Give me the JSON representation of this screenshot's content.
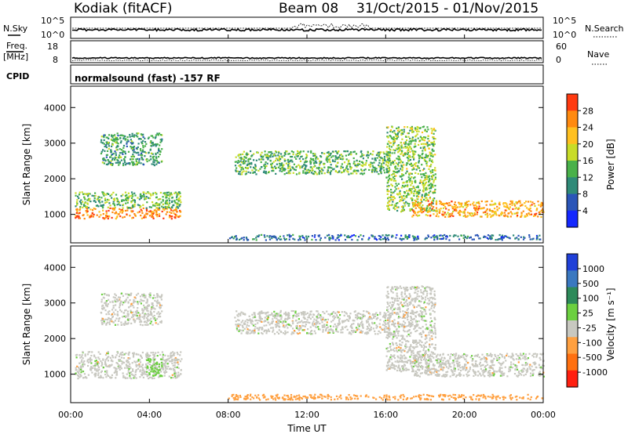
{
  "header": {
    "station": "Kodiak (fitACF)",
    "beam": "Beam 08",
    "date_range": "31/Oct/2015 - 01/Nov/2015"
  },
  "strip_noise": {
    "left_label": "N.Sky",
    "right_label": "N.Search",
    "left_ticks": [
      "10^5",
      "10^0"
    ],
    "right_ticks": [
      "10^5",
      "10^0"
    ]
  },
  "strip_freq": {
    "left_label_1": "Freq.",
    "left_label_2": "[MHz]",
    "right_label": "Nave",
    "left_ticks": [
      "18",
      "8"
    ],
    "right_ticks": [
      "60",
      "0"
    ]
  },
  "strip_cpid": {
    "label": "CPID",
    "text": "normalsound (fast) -157 RF"
  },
  "x_axis": {
    "label": "Time UT",
    "ticks": [
      "00:00",
      "04:00",
      "08:00",
      "12:00",
      "16:00",
      "20:00",
      "00:00"
    ]
  },
  "chart_data": [
    {
      "type": "heatmap",
      "name": "power",
      "ylabel": "Slant Range [km]",
      "yticks": [
        "1000",
        "2000",
        "3000",
        "4000"
      ],
      "ylim": [
        200,
        4600
      ],
      "xlim_hours": [
        0,
        24
      ],
      "colorbar_label": "Power [dB]",
      "colorbar_ticks": [
        "4",
        "8",
        "12",
        "16",
        "20",
        "24",
        "28"
      ],
      "colorbar_colors": [
        "#1428ff",
        "#2a55b8",
        "#2f8a78",
        "#49b14a",
        "#c8dc28",
        "#ffc020",
        "#ff8a10",
        "#ff3a10"
      ],
      "bands": [
        {
          "t": [
            0.2,
            5.6
          ],
          "range": [
            900,
            1200
          ],
          "level": 24
        },
        {
          "t": [
            0.2,
            5.6
          ],
          "range": [
            1200,
            1650
          ],
          "level": 12
        },
        {
          "t": [
            1.5,
            4.6
          ],
          "range": [
            2400,
            3300
          ],
          "level": 10
        },
        {
          "t": [
            8.3,
            16.2
          ],
          "range": [
            2150,
            2800
          ],
          "level": 12
        },
        {
          "t": [
            16.0,
            18.5
          ],
          "range": [
            1100,
            3500
          ],
          "level": 14
        },
        {
          "t": [
            17.3,
            24.0
          ],
          "range": [
            950,
            1400
          ],
          "level": 22
        },
        {
          "t": [
            8.0,
            24.0
          ],
          "range": [
            300,
            450
          ],
          "level": 6
        }
      ]
    },
    {
      "type": "heatmap",
      "name": "velocity",
      "ylabel": "Slant Range [km]",
      "yticks": [
        "1000",
        "2000",
        "3000",
        "4000"
      ],
      "ylim": [
        200,
        4600
      ],
      "xlim_hours": [
        0,
        24
      ],
      "colorbar_label": "Velocity [m s⁻¹]",
      "colorbar_ticks": [
        "1000",
        "500",
        "100",
        "25",
        "-25",
        "-100",
        "-500",
        "-1000"
      ],
      "colorbar_colors": [
        "#2040d8",
        "#3a78c0",
        "#2d8a5a",
        "#6cd040",
        "#c8c8c0",
        "#ffa040",
        "#ff7010",
        "#ff2010"
      ],
      "bands": [
        {
          "t": [
            0.2,
            5.6
          ],
          "range": [
            900,
            1650
          ],
          "level": 0
        },
        {
          "t": [
            3.8,
            4.6
          ],
          "range": [
            950,
            1450
          ],
          "level": 60
        },
        {
          "t": [
            1.5,
            4.6
          ],
          "range": [
            2400,
            3300
          ],
          "level": 0
        },
        {
          "t": [
            8.3,
            16.2
          ],
          "range": [
            2150,
            2800
          ],
          "level": 0
        },
        {
          "t": [
            16.0,
            18.5
          ],
          "range": [
            1100,
            3500
          ],
          "level": 0
        },
        {
          "t": [
            17.3,
            24.0
          ],
          "range": [
            950,
            1600
          ],
          "level": 0
        },
        {
          "t": [
            8.0,
            24.0
          ],
          "range": [
            300,
            450
          ],
          "level": -50
        }
      ]
    }
  ]
}
